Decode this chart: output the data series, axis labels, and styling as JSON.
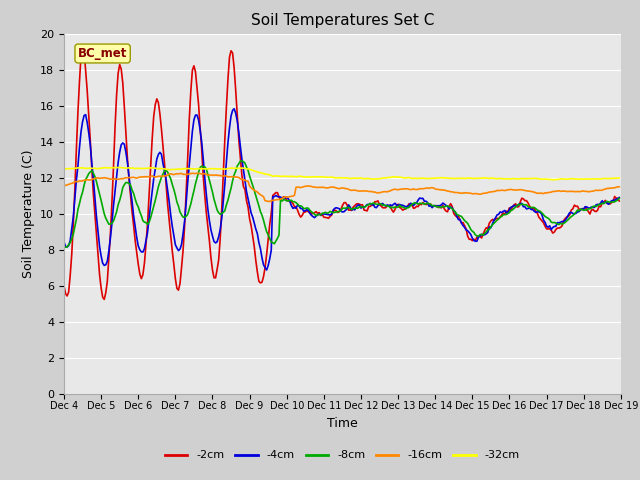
{
  "title": "Soil Temperatures Set C",
  "xlabel": "Time",
  "ylabel": "Soil Temperature (C)",
  "ylim": [
    0,
    20
  ],
  "yticks": [
    0,
    2,
    4,
    6,
    8,
    10,
    12,
    14,
    16,
    18,
    20
  ],
  "series_colors": [
    "#dd0000",
    "#0000dd",
    "#00aa00",
    "#ff8800",
    "#ffff00"
  ],
  "series_labels": [
    "-2cm",
    "-4cm",
    "-8cm",
    "-16cm",
    "-32cm"
  ],
  "x_tick_labels": [
    "Dec 4",
    "Dec 5",
    "Dec 6",
    "Dec 7",
    "Dec 8",
    "Dec 9",
    "Dec 10",
    "Dec 11",
    "Dec 12",
    "Dec 13",
    "Dec 14",
    "Dec 15",
    "Dec 16",
    "Dec 17",
    "Dec 18",
    "Dec 19"
  ],
  "x_tick_positions": [
    0,
    24,
    48,
    72,
    96,
    120,
    144,
    168,
    192,
    216,
    240,
    264,
    288,
    312,
    336,
    360
  ],
  "annotation_text": "BC_met",
  "fig_facecolor": "#d0d0d0",
  "ax_facecolor": "#e8e8e8",
  "grid_color": "#ffffff"
}
